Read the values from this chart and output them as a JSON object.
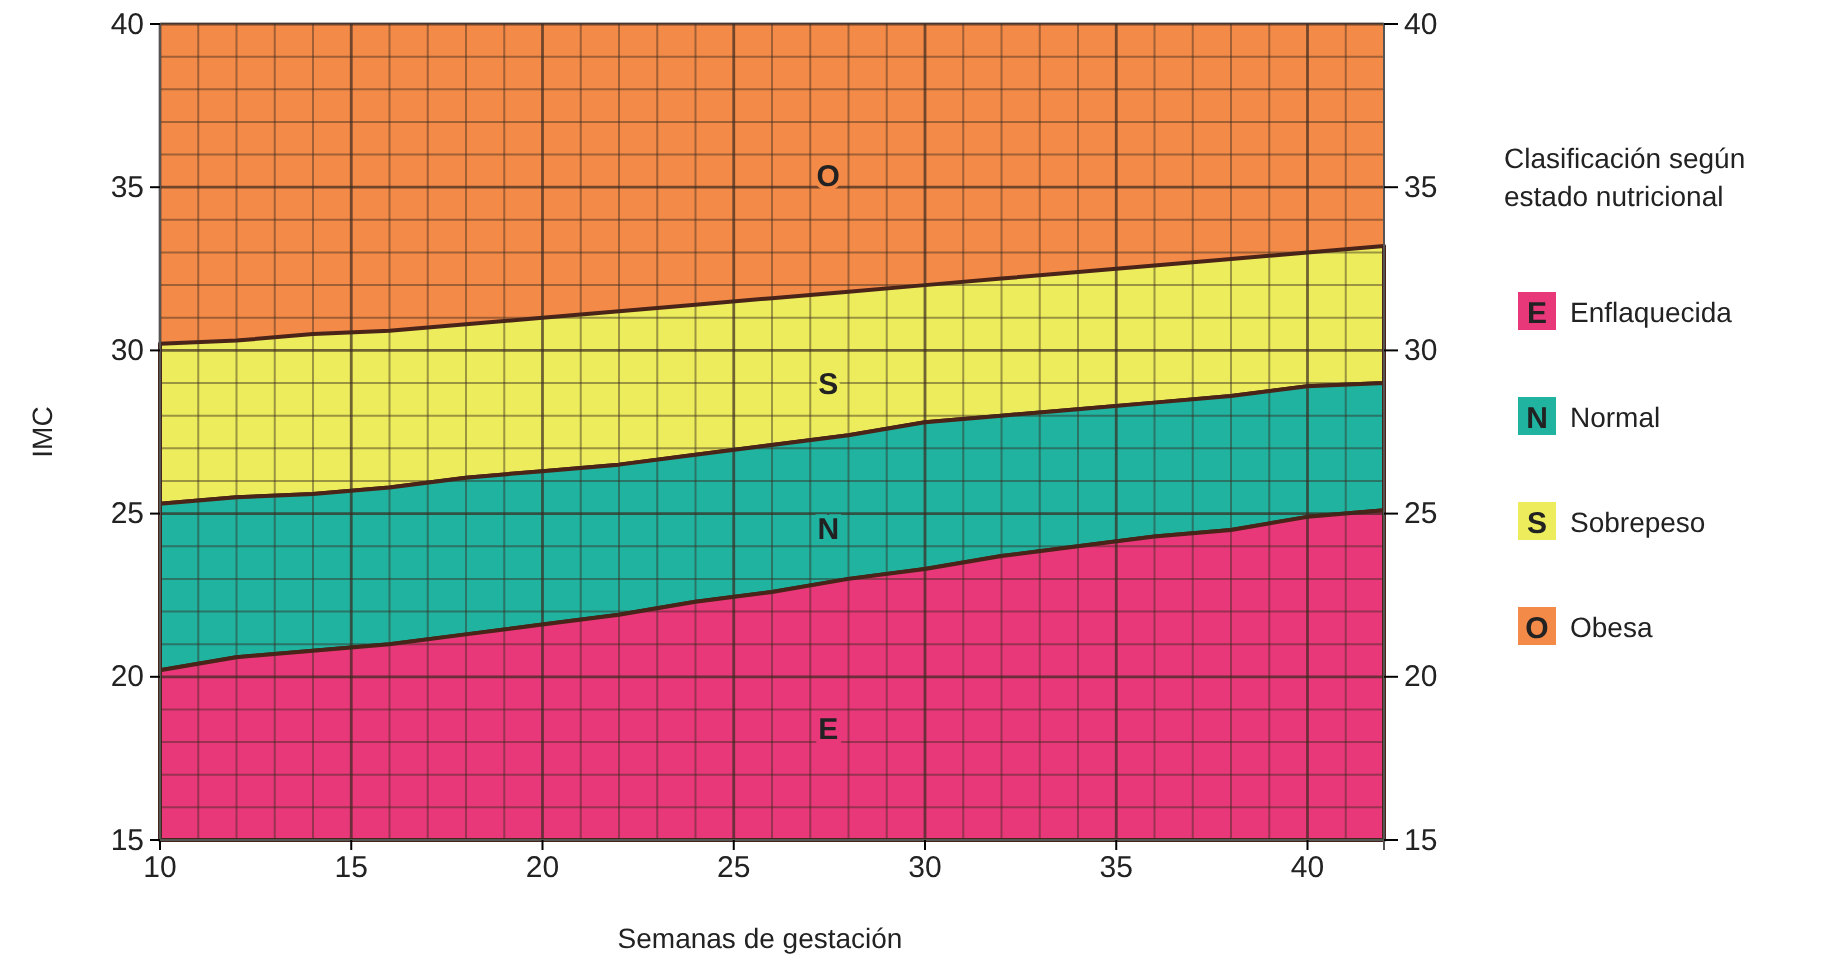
{
  "chart_data": {
    "type": "area",
    "xlabel": "Semanas de gestación",
    "ylabel": "IMC",
    "legend_title": "Clasificación según estado nutricional",
    "x": [
      10,
      12,
      14,
      16,
      18,
      20,
      22,
      24,
      26,
      28,
      30,
      32,
      34,
      36,
      38,
      40,
      42
    ],
    "series": [
      {
        "name": "Enflaquecida",
        "color": "#e8387a",
        "values": [
          20.2,
          20.6,
          20.8,
          21.0,
          21.3,
          21.6,
          21.9,
          22.3,
          22.6,
          23.0,
          23.3,
          23.7,
          24.0,
          24.3,
          24.5,
          24.9,
          25.1
        ]
      },
      {
        "name": "Normal",
        "color": "#1fb3a0",
        "values": [
          25.3,
          25.5,
          25.6,
          25.8,
          26.1,
          26.3,
          26.5,
          26.8,
          27.1,
          27.4,
          27.8,
          28.0,
          28.2,
          28.4,
          28.6,
          28.9,
          29.0
        ]
      },
      {
        "name": "Sobrepeso",
        "color": "#ecec5c",
        "values": [
          30.2,
          30.3,
          30.5,
          30.6,
          30.8,
          31.0,
          31.2,
          31.4,
          31.6,
          31.8,
          32.0,
          32.2,
          32.4,
          32.6,
          32.8,
          33.0,
          33.2
        ]
      },
      {
        "name": "Obesa",
        "color": "#f48a48",
        "values": [
          40,
          40,
          40,
          40,
          40,
          40,
          40,
          40,
          40,
          40,
          40,
          40,
          40,
          40,
          40,
          40,
          40
        ]
      }
    ],
    "annotations": [
      "E",
      "N",
      "S",
      "O"
    ],
    "xlim": [
      10,
      42
    ],
    "xticks": [
      10,
      15,
      20,
      25,
      30,
      35,
      40
    ],
    "ylim": [
      15,
      40
    ],
    "yticks": [
      15,
      20,
      25,
      30,
      35,
      40
    ],
    "y2lim": [
      15,
      40
    ],
    "y2ticks": [
      15,
      20,
      25,
      30,
      35,
      40
    ],
    "grid": true,
    "legend": "right"
  }
}
